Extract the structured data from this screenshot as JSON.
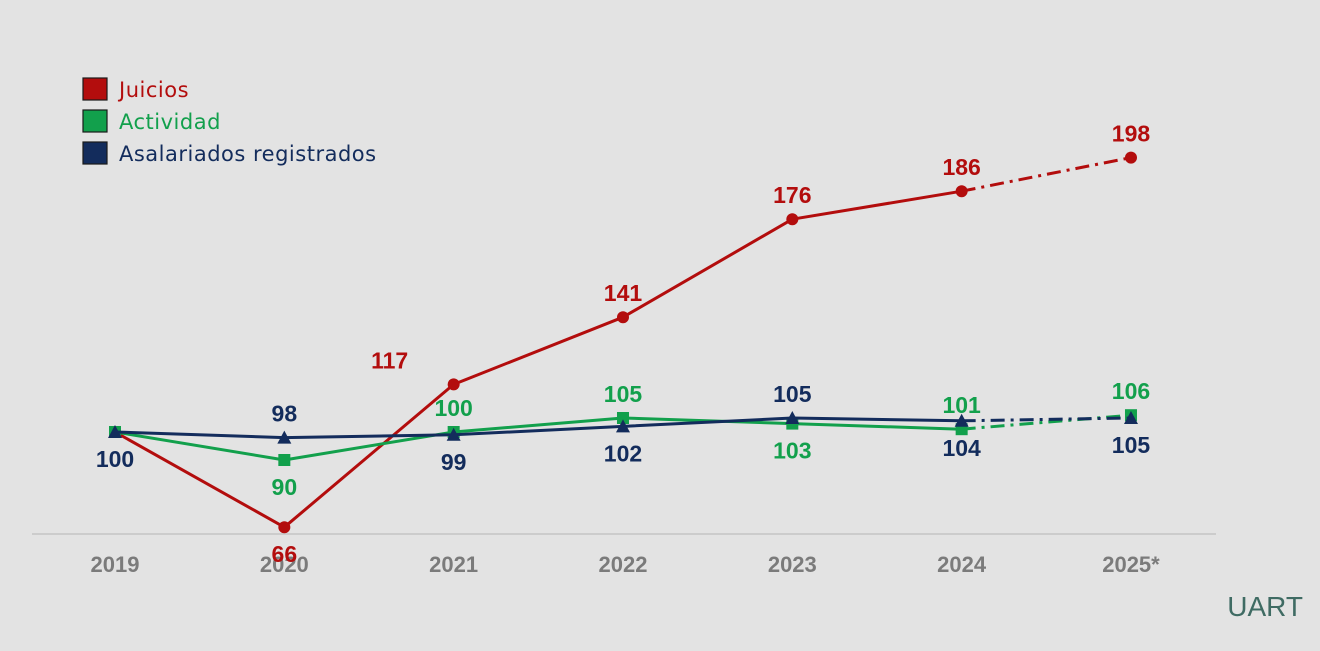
{
  "chart_data": {
    "type": "line",
    "x": [
      "2019",
      "2020",
      "2021",
      "2022",
      "2023",
      "2024",
      "2025*"
    ],
    "ylim": [
      40,
      240
    ],
    "grid": false,
    "legend_position": "top-left",
    "series": [
      {
        "name": "Juicios",
        "marker": "circle",
        "color": "#b30d0d",
        "values": [
          100,
          66,
          117,
          141,
          176,
          186,
          198
        ],
        "labels": [
          "",
          "66",
          "117",
          "141",
          "176",
          "186",
          "198"
        ],
        "label_pos": [
          "",
          "below",
          "above",
          "above",
          "above",
          "above",
          "above"
        ]
      },
      {
        "name": "Actividad",
        "marker": "square",
        "color": "#12a04c",
        "values": [
          100,
          90,
          100,
          105,
          103,
          101,
          106
        ],
        "labels": [
          "",
          "90",
          "100",
          "105",
          "103",
          "101",
          "106"
        ],
        "label_pos": [
          "",
          "below",
          "above",
          "above",
          "below",
          "above",
          "above"
        ]
      },
      {
        "name": "Asalariados registrados",
        "marker": "triangle",
        "color": "#132c5c",
        "values": [
          100,
          98,
          99,
          102,
          105,
          104,
          105
        ],
        "labels": [
          "100",
          "98",
          "99",
          "102",
          "105",
          "104",
          "105"
        ],
        "label_pos": [
          "below",
          "above",
          "below",
          "below",
          "above",
          "below",
          "below"
        ]
      }
    ],
    "projected_from_index": 5,
    "axis_color": "#c4c4c4",
    "tick_color": "#7b7b7b"
  },
  "brand": {
    "text": "UART",
    "color": "#3f6b63"
  }
}
